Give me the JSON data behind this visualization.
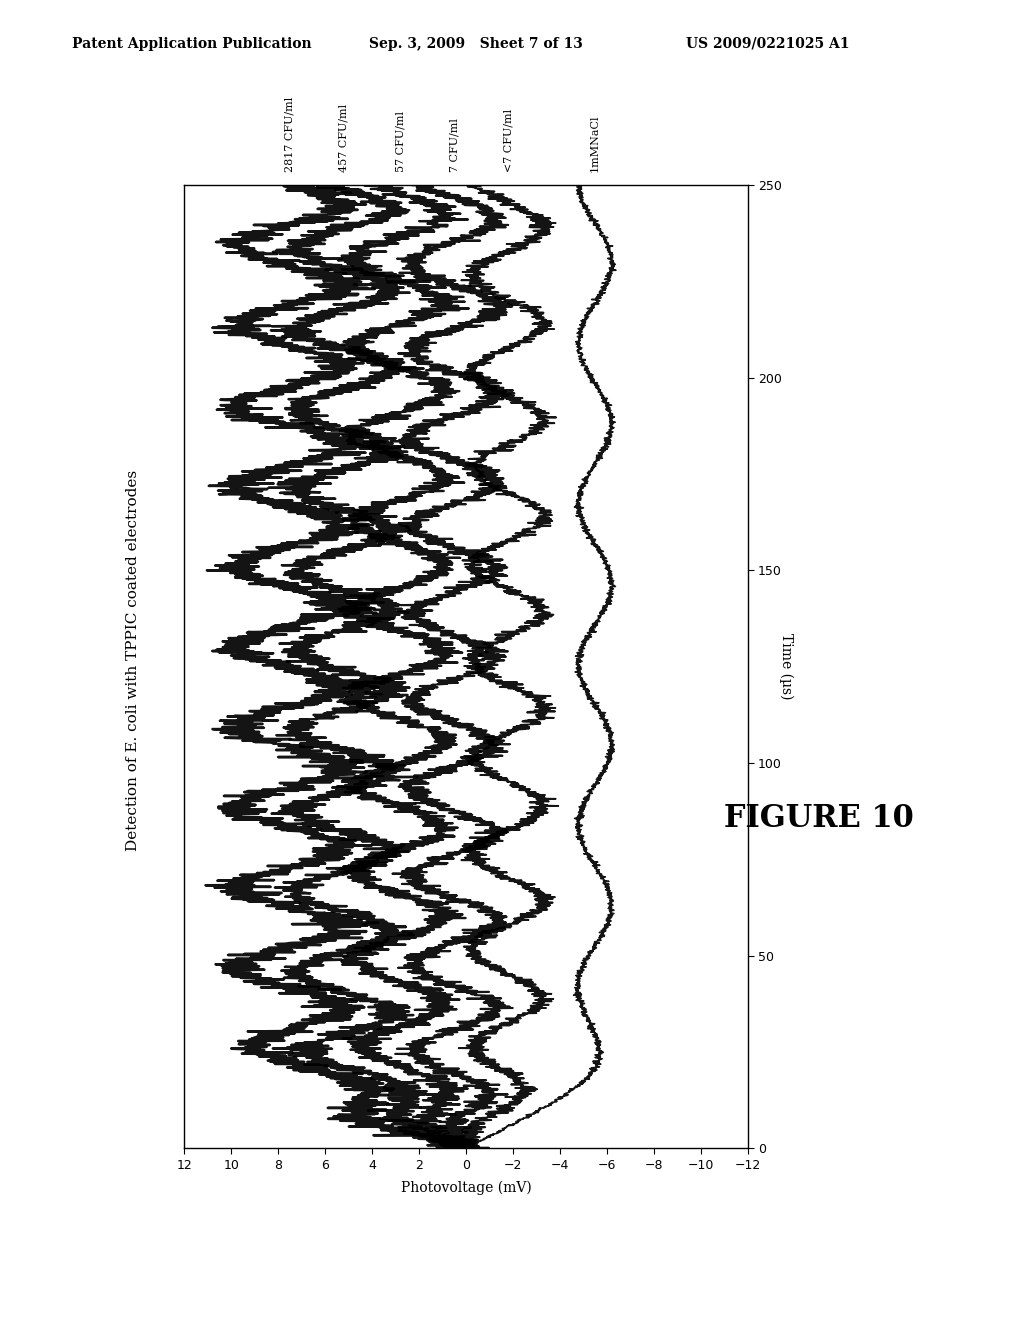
{
  "title": "Detection of E. coli with TPPIC coated electrodes",
  "time_label": "Time (µs)",
  "voltage_label": "Photovoltage (mV)",
  "time_lim": [
    0.0,
    250.0
  ],
  "voltage_lim": [
    -12.0,
    12.0
  ],
  "time_ticks": [
    0.0,
    50.0,
    100.0,
    150.0,
    200.0,
    250.0
  ],
  "voltage_ticks": [
    -12,
    -10,
    -8,
    -6,
    -4,
    -2,
    0,
    2,
    4,
    6,
    8,
    10,
    12
  ],
  "figure_label": "FIGURE 10",
  "header_left": "Patent Application Publication",
  "header_mid": "Sep. 3, 2009   Sheet 7 of 13",
  "header_right": "US 2009/0221025 A1",
  "series_labels": [
    "2817 CFU/ml",
    "457 CFU/ml",
    "57 CFU/ml",
    "7 CFU/ml",
    "<7 CFU/ml",
    "1mMNaCl"
  ],
  "series_offsets": [
    7.5,
    5.2,
    2.8,
    0.5,
    -1.8,
    -5.5
  ],
  "series_amplitudes": [
    2.2,
    2.0,
    1.9,
    1.8,
    1.5,
    0.7
  ],
  "osc_cycles": [
    12,
    12,
    11,
    11,
    10,
    6
  ],
  "noise_scale": [
    0.25,
    0.22,
    0.2,
    0.18,
    0.15,
    0.1
  ],
  "line_widths": [
    1.8,
    1.7,
    1.6,
    1.5,
    1.3,
    1.1
  ],
  "background_color": "#ffffff",
  "seed": 17
}
